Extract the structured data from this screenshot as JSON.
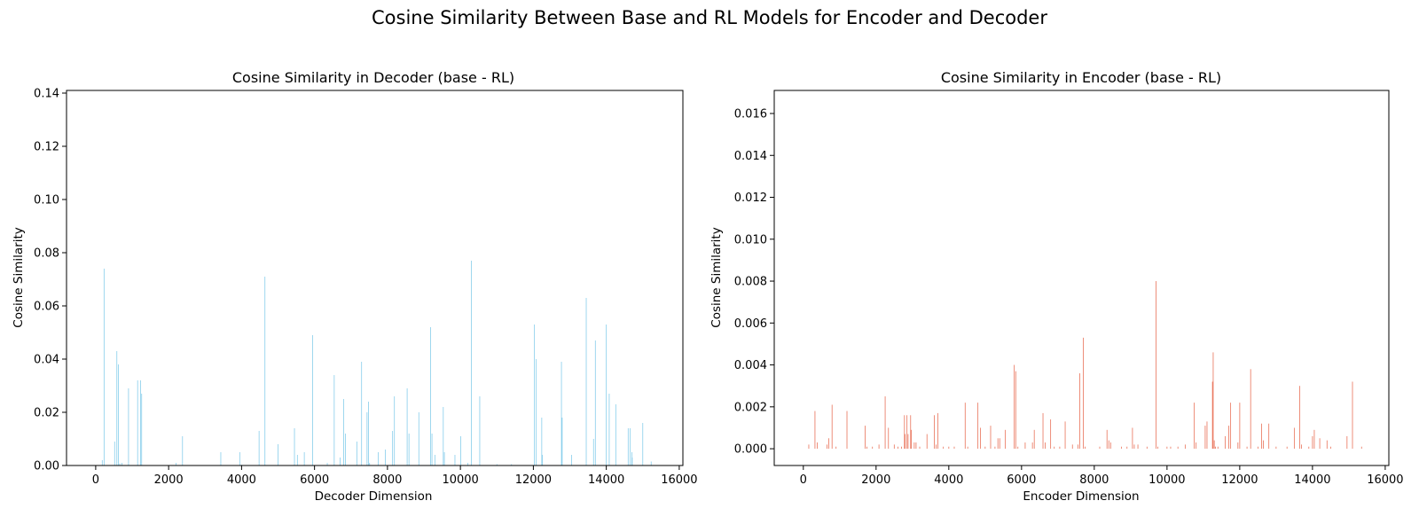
{
  "figure": {
    "title": "Cosine Similarity Between Base and RL Models for Encoder and Decoder"
  },
  "chart_data": [
    {
      "type": "bar",
      "title": "Cosine Similarity in Decoder (base - RL)",
      "xlabel": "Decoder Dimension",
      "ylabel": "Cosine Similarity",
      "xlim": [
        -800,
        16100
      ],
      "ylim": [
        0,
        0.141
      ],
      "xticks": [
        0,
        2000,
        4000,
        6000,
        8000,
        10000,
        12000,
        14000,
        16000
      ],
      "yticks": [
        0.0,
        0.02,
        0.04,
        0.06,
        0.08,
        0.1,
        0.12,
        0.14
      ],
      "ytick_labels": [
        "0.00",
        "0.02",
        "0.04",
        "0.06",
        "0.08",
        "0.10",
        "0.12",
        "0.14"
      ],
      "grid": false,
      "color": "#87CEEB",
      "x": [
        180,
        230,
        520,
        580,
        620,
        660,
        720,
        900,
        1150,
        1230,
        1260,
        2200,
        2380,
        3430,
        3950,
        4000,
        4480,
        4640,
        5000,
        5450,
        5530,
        5720,
        5950,
        6350,
        6540,
        6700,
        6800,
        6850,
        7160,
        7290,
        7440,
        7480,
        7510,
        7750,
        7940,
        8140,
        8190,
        8540,
        8590,
        8860,
        9180,
        9220,
        9300,
        9530,
        9560,
        9850,
        10010,
        10200,
        10300,
        10530,
        11000,
        11400,
        12030,
        12080,
        12230,
        12250,
        12770,
        12790,
        13050,
        13450,
        13650,
        13700,
        14000,
        14080,
        14260,
        14600,
        14650,
        14700,
        14710,
        15000,
        15230
      ],
      "y": [
        0.002,
        0.074,
        0.009,
        0.043,
        0.038,
        0.0008,
        0.001,
        0.029,
        0.032,
        0.032,
        0.027,
        0.001,
        0.011,
        0.005,
        0.005,
        0.0003,
        0.013,
        0.071,
        0.008,
        0.014,
        0.004,
        0.005,
        0.049,
        0.001,
        0.034,
        0.003,
        0.025,
        0.012,
        0.009,
        0.039,
        0.02,
        0.024,
        0.001,
        0.005,
        0.006,
        0.013,
        0.026,
        0.029,
        0.012,
        0.02,
        0.052,
        0.012,
        0.004,
        0.022,
        0.005,
        0.004,
        0.011,
        0.001,
        0.077,
        0.026,
        0.0005,
        0.0005,
        0.053,
        0.04,
        0.018,
        0.004,
        0.039,
        0.018,
        0.004,
        0.063,
        0.01,
        0.047,
        0.053,
        0.027,
        0.023,
        0.014,
        0.014,
        0.005,
        0.003,
        0.016,
        0.0015
      ]
    },
    {
      "type": "bar",
      "title": "Cosine Similarity in Encoder (base - RL)",
      "xlabel": "Encoder Dimension",
      "ylabel": "Cosine Similarity",
      "xlim": [
        -800,
        16100
      ],
      "ylim": [
        -0.0008,
        0.0171
      ],
      "xticks": [
        0,
        2000,
        4000,
        6000,
        8000,
        10000,
        12000,
        14000,
        16000
      ],
      "yticks": [
        0.0,
        0.002,
        0.004,
        0.006,
        0.008,
        0.01,
        0.012,
        0.014,
        0.016
      ],
      "ytick_labels": [
        "0.000",
        "0.002",
        "0.004",
        "0.006",
        "0.008",
        "0.010",
        "0.012",
        "0.014",
        "0.016"
      ],
      "grid": false,
      "color": "#E9735A",
      "x": [
        150,
        320,
        380,
        650,
        700,
        790,
        900,
        1200,
        1700,
        1750,
        1900,
        2080,
        2250,
        2340,
        2500,
        2600,
        2700,
        2780,
        2800,
        2850,
        2880,
        2950,
        2970,
        3050,
        3100,
        3200,
        3400,
        3600,
        3650,
        3700,
        3850,
        4000,
        4150,
        4450,
        4520,
        4800,
        4870,
        5000,
        5150,
        5270,
        5350,
        5400,
        5550,
        5800,
        5840,
        5900,
        6100,
        6300,
        6350,
        6590,
        6650,
        6800,
        6900,
        7050,
        7200,
        7400,
        7550,
        7600,
        7700,
        7750,
        8150,
        8350,
        8400,
        8450,
        8750,
        8900,
        9050,
        9100,
        9200,
        9450,
        9700,
        9750,
        10000,
        10100,
        10300,
        10500,
        10750,
        10800,
        11050,
        11100,
        11250,
        11270,
        11300,
        11330,
        11400,
        11600,
        11700,
        11750,
        11950,
        12000,
        12200,
        12300,
        12500,
        12600,
        12650,
        12800,
        13000,
        13300,
        13500,
        13650,
        13700,
        13900,
        14000,
        14050,
        14200,
        14400,
        14500,
        14950,
        15100,
        15350
      ],
      "y": [
        0.0002,
        0.0018,
        0.0003,
        0.0002,
        0.0005,
        0.0021,
        0.0001,
        0.0018,
        0.0011,
        0.0001,
        0.0001,
        0.0002,
        0.0025,
        0.001,
        0.0002,
        0.0001,
        0.0001,
        0.0016,
        0.0007,
        0.0016,
        0.0007,
        0.0016,
        0.0009,
        0.0003,
        0.0003,
        0.0001,
        0.0007,
        0.0016,
        0.0002,
        0.0017,
        0.0001,
        0.0001,
        0.0001,
        0.0022,
        0.0001,
        0.0022,
        0.001,
        0.0001,
        0.0011,
        0.0001,
        0.0005,
        0.0005,
        0.0009,
        0.004,
        0.0037,
        0.0001,
        0.0003,
        0.0003,
        0.0009,
        0.0017,
        0.0003,
        0.0014,
        0.0001,
        0.0001,
        0.0013,
        0.0002,
        0.0002,
        0.0036,
        0.0053,
        0.0001,
        0.0001,
        0.0009,
        0.0004,
        0.0003,
        0.0001,
        0.0001,
        0.001,
        0.0002,
        0.0002,
        0.0001,
        0.008,
        0.0001,
        0.0001,
        0.0001,
        0.0001,
        0.0002,
        0.0022,
        0.0003,
        0.0011,
        0.0013,
        0.0032,
        0.0046,
        0.0004,
        0.0001,
        0.0001,
        0.0006,
        0.0011,
        0.0022,
        0.0003,
        0.0022,
        0.0001,
        0.0038,
        0.0001,
        0.0012,
        0.0004,
        0.0012,
        0.0001,
        0.0001,
        0.001,
        0.003,
        0.0002,
        0.0001,
        0.0006,
        0.0009,
        0.0005,
        0.0004,
        0.0001,
        0.0006,
        0.0032,
        0.0001
      ]
    }
  ]
}
